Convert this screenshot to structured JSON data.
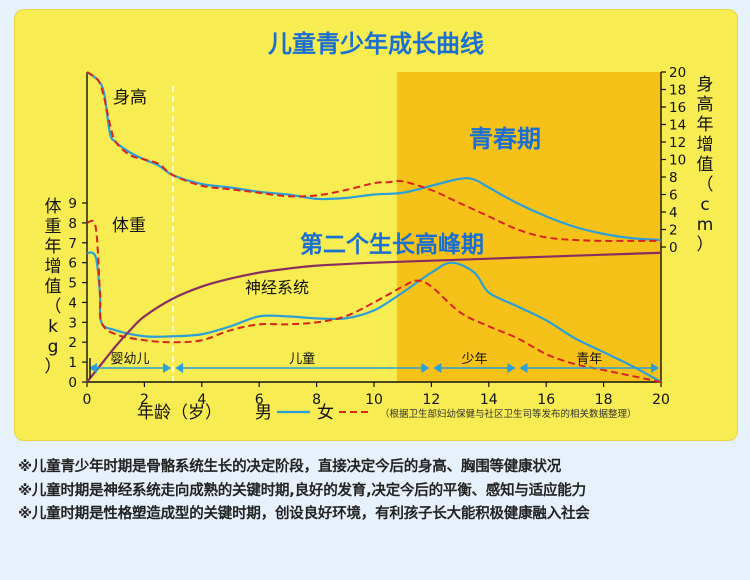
{
  "chart_data": {
    "type": "line",
    "title": "儿童青少年成长曲线",
    "xlabel": "年龄（岁）",
    "xlim": [
      0,
      20
    ],
    "x_ticks": [
      0,
      2,
      4,
      6,
      8,
      10,
      12,
      14,
      16,
      18,
      20
    ],
    "y_left": {
      "label": "体重年增值（kg）",
      "ylim": [
        0,
        9
      ],
      "ticks": [
        0,
        1,
        2,
        3,
        4,
        5,
        6,
        7,
        8,
        9
      ]
    },
    "y_right": {
      "label": "身高年增值（cm）",
      "ylim": [
        0,
        20
      ],
      "ticks": [
        0,
        2,
        4,
        6,
        8,
        10,
        12,
        14,
        16,
        18,
        20
      ]
    },
    "legend": {
      "male": "男",
      "female": "女",
      "placement": "bottom"
    },
    "male_color": "#2c9fd6",
    "female_color": "#d8251c",
    "neural_color": "#8a2d5e",
    "puberty_color": "#f6c21a",
    "puberty_range": [
      10.8,
      20
    ],
    "infant_boundary": 3,
    "series_labels": {
      "height": "身高",
      "weight": "体重",
      "neural": "神经系统",
      "puberty": "青春期",
      "peak": "第二个生长高峰期"
    },
    "series": [
      {
        "group": "height",
        "sex": "male",
        "axis": "right",
        "points": [
          [
            0,
            20
          ],
          [
            0.4,
            19
          ],
          [
            0.6,
            17.5
          ],
          [
            0.8,
            13
          ],
          [
            1.0,
            12
          ],
          [
            1.5,
            10.8
          ],
          [
            2,
            10
          ],
          [
            2.5,
            9.3
          ],
          [
            3,
            8.2
          ],
          [
            4,
            7.2
          ],
          [
            5,
            6.8
          ],
          [
            6,
            6.3
          ],
          [
            7,
            6
          ],
          [
            8,
            5.5
          ],
          [
            9,
            5.6
          ],
          [
            10,
            6
          ],
          [
            11,
            6.2
          ],
          [
            12,
            7
          ],
          [
            13,
            7.8
          ],
          [
            13.5,
            7.7
          ],
          [
            14,
            6.8
          ],
          [
            15,
            5
          ],
          [
            16,
            3.5
          ],
          [
            17,
            2.3
          ],
          [
            18,
            1.5
          ],
          [
            19,
            1
          ],
          [
            20,
            0.8
          ]
        ]
      },
      {
        "group": "height",
        "sex": "female",
        "axis": "right",
        "points": [
          [
            0,
            20
          ],
          [
            0.4,
            19
          ],
          [
            0.6,
            17
          ],
          [
            0.8,
            14
          ],
          [
            1.0,
            12
          ],
          [
            1.5,
            10.5
          ],
          [
            2,
            10
          ],
          [
            2.5,
            9.5
          ],
          [
            3,
            8.2
          ],
          [
            4,
            7
          ],
          [
            5,
            6.6
          ],
          [
            6,
            6.2
          ],
          [
            7,
            5.8
          ],
          [
            8,
            5.9
          ],
          [
            9,
            6.5
          ],
          [
            10,
            7.3
          ],
          [
            10.5,
            7.4
          ],
          [
            11,
            7.5
          ],
          [
            12,
            6.5
          ],
          [
            13,
            5
          ],
          [
            14,
            3.5
          ],
          [
            15,
            2
          ],
          [
            16,
            1.1
          ],
          [
            17,
            0.8
          ],
          [
            18,
            0.7
          ],
          [
            19,
            0.7
          ],
          [
            20,
            0.7
          ]
        ]
      },
      {
        "group": "weight",
        "sex": "male",
        "axis": "left",
        "points": [
          [
            0,
            6.5
          ],
          [
            0.3,
            6.3
          ],
          [
            0.45,
            4.5
          ],
          [
            0.5,
            3
          ],
          [
            1,
            2.6
          ],
          [
            2,
            2.3
          ],
          [
            3,
            2.3
          ],
          [
            4,
            2.4
          ],
          [
            5,
            2.8
          ],
          [
            6,
            3.3
          ],
          [
            7,
            3.3
          ],
          [
            8,
            3.2
          ],
          [
            9,
            3.2
          ],
          [
            10,
            3.6
          ],
          [
            11,
            4.5
          ],
          [
            12,
            5.5
          ],
          [
            12.7,
            6
          ],
          [
            13.5,
            5.5
          ],
          [
            14,
            4.5
          ],
          [
            15,
            3.8
          ],
          [
            16,
            3.1
          ],
          [
            17,
            2.2
          ],
          [
            18,
            1.5
          ],
          [
            19,
            0.8
          ],
          [
            20,
            0
          ]
        ]
      },
      {
        "group": "weight",
        "sex": "female",
        "axis": "left",
        "points": [
          [
            0,
            8
          ],
          [
            0.3,
            7.8
          ],
          [
            0.45,
            4.5
          ],
          [
            0.5,
            3
          ],
          [
            1,
            2.4
          ],
          [
            2,
            2.1
          ],
          [
            3,
            2
          ],
          [
            4,
            2.1
          ],
          [
            5,
            2.6
          ],
          [
            6,
            2.9
          ],
          [
            7,
            2.9
          ],
          [
            8,
            3
          ],
          [
            9,
            3.3
          ],
          [
            10,
            4
          ],
          [
            11,
            4.8
          ],
          [
            11.5,
            5.1
          ],
          [
            12,
            4.8
          ],
          [
            13,
            3.5
          ],
          [
            14,
            2.8
          ],
          [
            15,
            2.2
          ],
          [
            16,
            1.4
          ],
          [
            17,
            0.9
          ],
          [
            18,
            0.6
          ],
          [
            19,
            0.3
          ],
          [
            20,
            0
          ]
        ]
      },
      {
        "group": "neural",
        "sex": "both",
        "axis": "left",
        "points": [
          [
            0,
            0
          ],
          [
            0.5,
            0.9
          ],
          [
            1,
            1.8
          ],
          [
            1.5,
            2.6
          ],
          [
            2,
            3.3
          ],
          [
            3,
            4.2
          ],
          [
            4,
            4.8
          ],
          [
            5,
            5.2
          ],
          [
            6,
            5.5
          ],
          [
            7,
            5.7
          ],
          [
            8,
            5.85
          ],
          [
            10,
            6.0
          ],
          [
            12,
            6.1
          ],
          [
            14,
            6.2
          ],
          [
            16,
            6.3
          ],
          [
            18,
            6.4
          ],
          [
            20,
            6.5
          ]
        ]
      }
    ],
    "stages": [
      {
        "label": "婴幼儿",
        "from": 0,
        "to": 3
      },
      {
        "label": "儿童",
        "from": 3,
        "to": 12
      },
      {
        "label": "少年",
        "from": 12,
        "to": 15
      },
      {
        "label": "青年",
        "from": 15,
        "to": 20
      }
    ],
    "source_note": "（根据卫生部妇幼保健与社区卫生司等发布的相关数据整理）"
  },
  "notes": [
    "※儿童青少年时期是骨骼系统生长的决定阶段，直接决定今后的身高、胸围等健康状况",
    "※儿童时期是神经系统走向成熟的关键时期,良好的发育,决定今后的平衡、感知与适应能力",
    "※儿童时期是性格塑造成型的关键时期，创设良好环境，有利孩子长大能积极健康融入社会"
  ]
}
